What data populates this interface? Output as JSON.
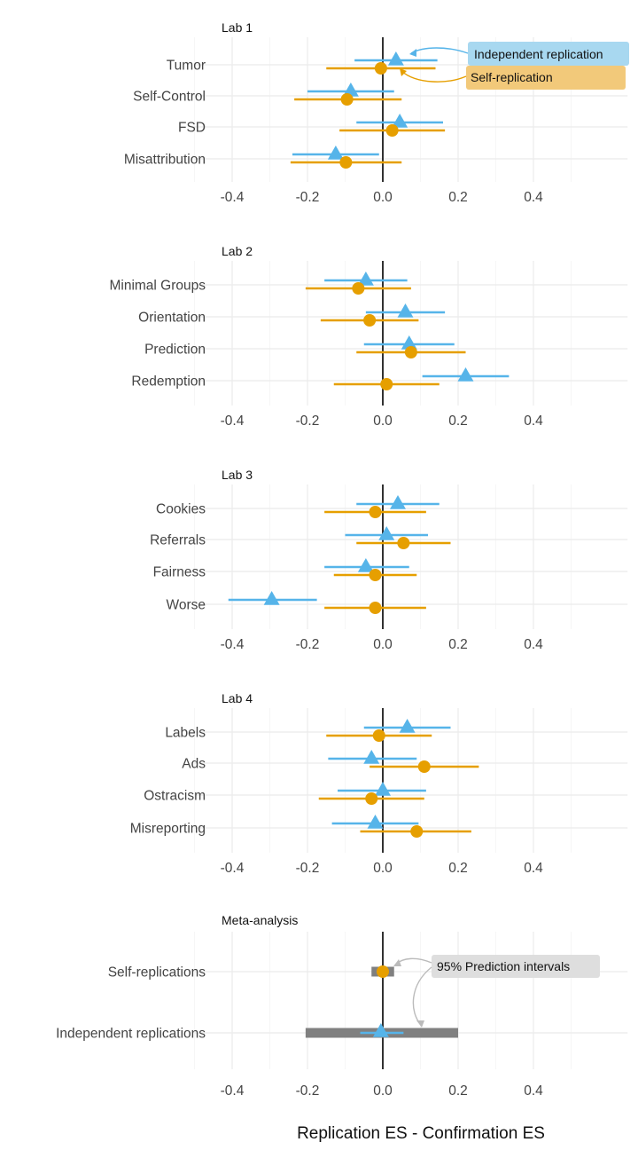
{
  "chart_data": {
    "type": "forest",
    "xlabel": "Replication ES - Confirmation ES",
    "xlim": [
      -0.5,
      0.65
    ],
    "xticks": [
      -0.4,
      -0.2,
      0.0,
      0.2,
      0.4
    ],
    "xtick_labels": [
      "-0.4",
      "-0.2",
      "0.0",
      "0.2",
      "0.4"
    ],
    "grid": true,
    "colors": {
      "independent": "#56b4e9",
      "self": "#e69f00",
      "prediction_interval": "#808080",
      "zero_line": "#000000"
    },
    "markers": {
      "independent": "triangle",
      "self": "circle"
    },
    "panels": [
      {
        "title": "Lab 1",
        "studies": [
          {
            "label": "Tumor",
            "independent": {
              "est": 0.035,
              "lo": -0.075,
              "hi": 0.145
            },
            "self": {
              "est": -0.005,
              "lo": -0.15,
              "hi": 0.14
            }
          },
          {
            "label": "Self-Control",
            "independent": {
              "est": -0.085,
              "lo": -0.2,
              "hi": 0.03
            },
            "self": {
              "est": -0.095,
              "lo": -0.235,
              "hi": 0.05
            }
          },
          {
            "label": "FSD",
            "independent": {
              "est": 0.045,
              "lo": -0.07,
              "hi": 0.16
            },
            "self": {
              "est": 0.025,
              "lo": -0.115,
              "hi": 0.165
            }
          },
          {
            "label": "Misattribution",
            "independent": {
              "est": -0.125,
              "lo": -0.24,
              "hi": -0.01
            },
            "self": {
              "est": -0.098,
              "lo": -0.245,
              "hi": 0.05
            }
          }
        ],
        "annotations": [
          {
            "text": "Independent replication",
            "series": "independent",
            "study": "Tumor"
          },
          {
            "text": "Self-replication",
            "series": "self",
            "study": "Tumor"
          }
        ]
      },
      {
        "title": "Lab 2",
        "studies": [
          {
            "label": "Minimal Groups",
            "independent": {
              "est": -0.045,
              "lo": -0.155,
              "hi": 0.065
            },
            "self": {
              "est": -0.065,
              "lo": -0.205,
              "hi": 0.075
            }
          },
          {
            "label": "Orientation",
            "independent": {
              "est": 0.06,
              "lo": -0.045,
              "hi": 0.165
            },
            "self": {
              "est": -0.035,
              "lo": -0.165,
              "hi": 0.095
            }
          },
          {
            "label": "Prediction",
            "independent": {
              "est": 0.07,
              "lo": -0.05,
              "hi": 0.19
            },
            "self": {
              "est": 0.075,
              "lo": -0.07,
              "hi": 0.22
            }
          },
          {
            "label": "Redemption",
            "independent": {
              "est": 0.22,
              "lo": 0.105,
              "hi": 0.335
            },
            "self": {
              "est": 0.01,
              "lo": -0.13,
              "hi": 0.15
            }
          }
        ]
      },
      {
        "title": "Lab 3",
        "studies": [
          {
            "label": "Cookies",
            "independent": {
              "est": 0.04,
              "lo": -0.07,
              "hi": 0.15
            },
            "self": {
              "est": -0.02,
              "lo": -0.155,
              "hi": 0.115
            }
          },
          {
            "label": "Referrals",
            "independent": {
              "est": 0.01,
              "lo": -0.1,
              "hi": 0.12
            },
            "self": {
              "est": 0.055,
              "lo": -0.07,
              "hi": 0.18
            }
          },
          {
            "label": "Fairness",
            "independent": {
              "est": -0.045,
              "lo": -0.155,
              "hi": 0.07
            },
            "self": {
              "est": -0.02,
              "lo": -0.13,
              "hi": 0.09
            }
          },
          {
            "label": "Worse",
            "independent": {
              "est": -0.295,
              "lo": -0.41,
              "hi": -0.175
            },
            "self": {
              "est": -0.02,
              "lo": -0.155,
              "hi": 0.115
            }
          }
        ]
      },
      {
        "title": "Lab 4",
        "studies": [
          {
            "label": "Labels",
            "independent": {
              "est": 0.065,
              "lo": -0.05,
              "hi": 0.18
            },
            "self": {
              "est": -0.01,
              "lo": -0.15,
              "hi": 0.13
            }
          },
          {
            "label": "Ads",
            "independent": {
              "est": -0.03,
              "lo": -0.145,
              "hi": 0.09
            },
            "self": {
              "est": 0.11,
              "lo": -0.035,
              "hi": 0.255
            }
          },
          {
            "label": "Ostracism",
            "independent": {
              "est": 0.0,
              "lo": -0.12,
              "hi": 0.115
            },
            "self": {
              "est": -0.03,
              "lo": -0.17,
              "hi": 0.11
            }
          },
          {
            "label": "Misreporting",
            "independent": {
              "est": -0.02,
              "lo": -0.135,
              "hi": 0.095
            },
            "self": {
              "est": 0.09,
              "lo": -0.06,
              "hi": 0.235
            }
          }
        ]
      },
      {
        "title": "Meta-analysis",
        "rows": [
          {
            "label": "Self-replications",
            "series": "self",
            "est": 0.0,
            "ci_lo": -0.015,
            "ci_hi": 0.015,
            "pi_lo": -0.03,
            "pi_hi": 0.03
          },
          {
            "label": "Independent replications",
            "series": "independent",
            "est": -0.005,
            "ci_lo": -0.06,
            "ci_hi": 0.055,
            "pi_lo": -0.205,
            "pi_hi": 0.2
          }
        ],
        "annotations": [
          {
            "text": "95% Prediction intervals"
          }
        ]
      }
    ]
  }
}
